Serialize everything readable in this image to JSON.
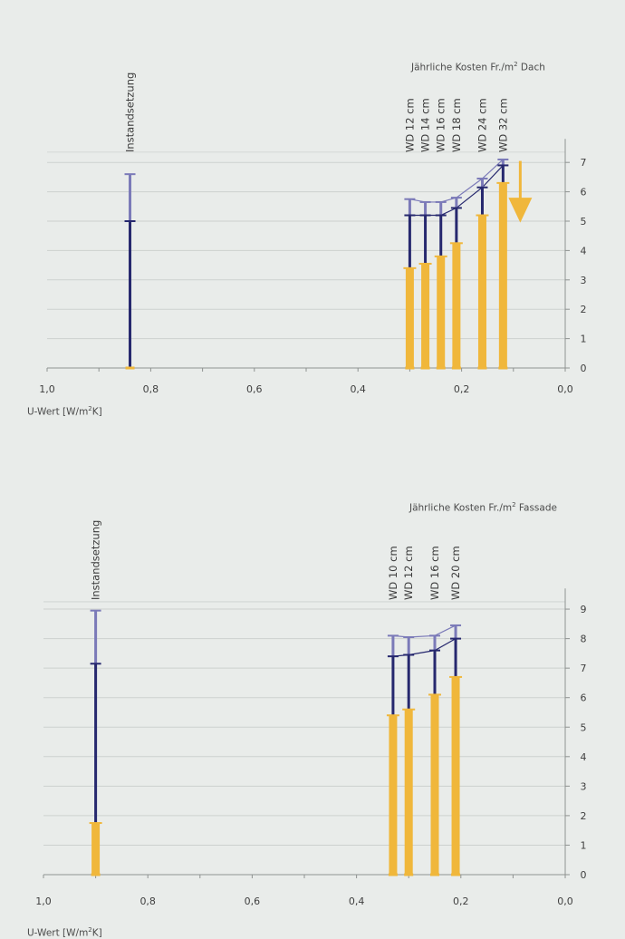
{
  "chart_data": [
    {
      "type": "bar",
      "caption_prefix": "Jährliche Kosten Fr./m",
      "caption_exp": "2",
      "caption_suffix": " Dach",
      "xlabel_prefix": "U-Wert [W/m",
      "xlabel_exp": "2",
      "xlabel_suffix": "K]",
      "xlim": [
        1.0,
        0.0
      ],
      "ylim": [
        0,
        7
      ],
      "x_ticks": [
        "1,0",
        "0,8",
        "0,6",
        "0,4",
        "0,2",
        "0,0"
      ],
      "y_ticks": [
        "0",
        "1",
        "2",
        "3",
        "4",
        "5",
        "6",
        "7"
      ],
      "categories": [
        "Instandsetzung",
        "WD 12 cm",
        "WD 14 cm",
        "WD 16 cm",
        "WD 18 cm",
        "WD 24 cm",
        "WD 32 cm"
      ],
      "x": [
        0.84,
        0.3,
        0.27,
        0.24,
        0.21,
        0.16,
        0.12
      ],
      "series": [
        {
          "values": [
            0.0,
            3.4,
            3.55,
            3.8,
            4.25,
            5.2,
            6.3
          ]
        },
        {
          "values": [
            5.0,
            5.2,
            5.2,
            5.2,
            5.45,
            6.15,
            6.9
          ]
        },
        {
          "values": [
            6.6,
            5.75,
            5.65,
            5.65,
            5.8,
            6.45,
            7.1
          ]
        }
      ],
      "annotation": "down-arrow",
      "colors": {
        "bar": "#f0b73b",
        "mid": "#26286e",
        "top": "#7b7ab8",
        "grid": "#cdd1cf",
        "axis": "#8f9391"
      }
    },
    {
      "type": "bar",
      "caption_prefix": "Jährliche Kosten Fr./m",
      "caption_exp": "2",
      "caption_suffix": " Fassade",
      "xlabel_prefix": "U-Wert [W/m",
      "xlabel_exp": "2",
      "xlabel_suffix": "K]",
      "xlim": [
        1.0,
        0.0
      ],
      "ylim": [
        0,
        9
      ],
      "x_ticks": [
        "1,0",
        "0,8",
        "0,6",
        "0,4",
        "0,2",
        "0,0"
      ],
      "y_ticks": [
        "0",
        "1",
        "2",
        "3",
        "4",
        "5",
        "6",
        "7",
        "8",
        "9"
      ],
      "categories": [
        "Instandsetzung",
        "WD 10 cm",
        "WD 12 cm",
        "WD 16 cm",
        "WD 20 cm"
      ],
      "x": [
        0.9,
        0.33,
        0.3,
        0.25,
        0.21
      ],
      "series": [
        {
          "values": [
            1.75,
            5.4,
            5.6,
            6.1,
            6.7
          ]
        },
        {
          "values": [
            7.15,
            7.4,
            7.45,
            7.6,
            8.0
          ]
        },
        {
          "values": [
            8.95,
            8.1,
            8.05,
            8.1,
            8.45
          ]
        }
      ],
      "colors": {
        "bar": "#f0b73b",
        "mid": "#26286e",
        "top": "#7b7ab8",
        "grid": "#cdd1cf",
        "axis": "#8f9391"
      }
    }
  ]
}
